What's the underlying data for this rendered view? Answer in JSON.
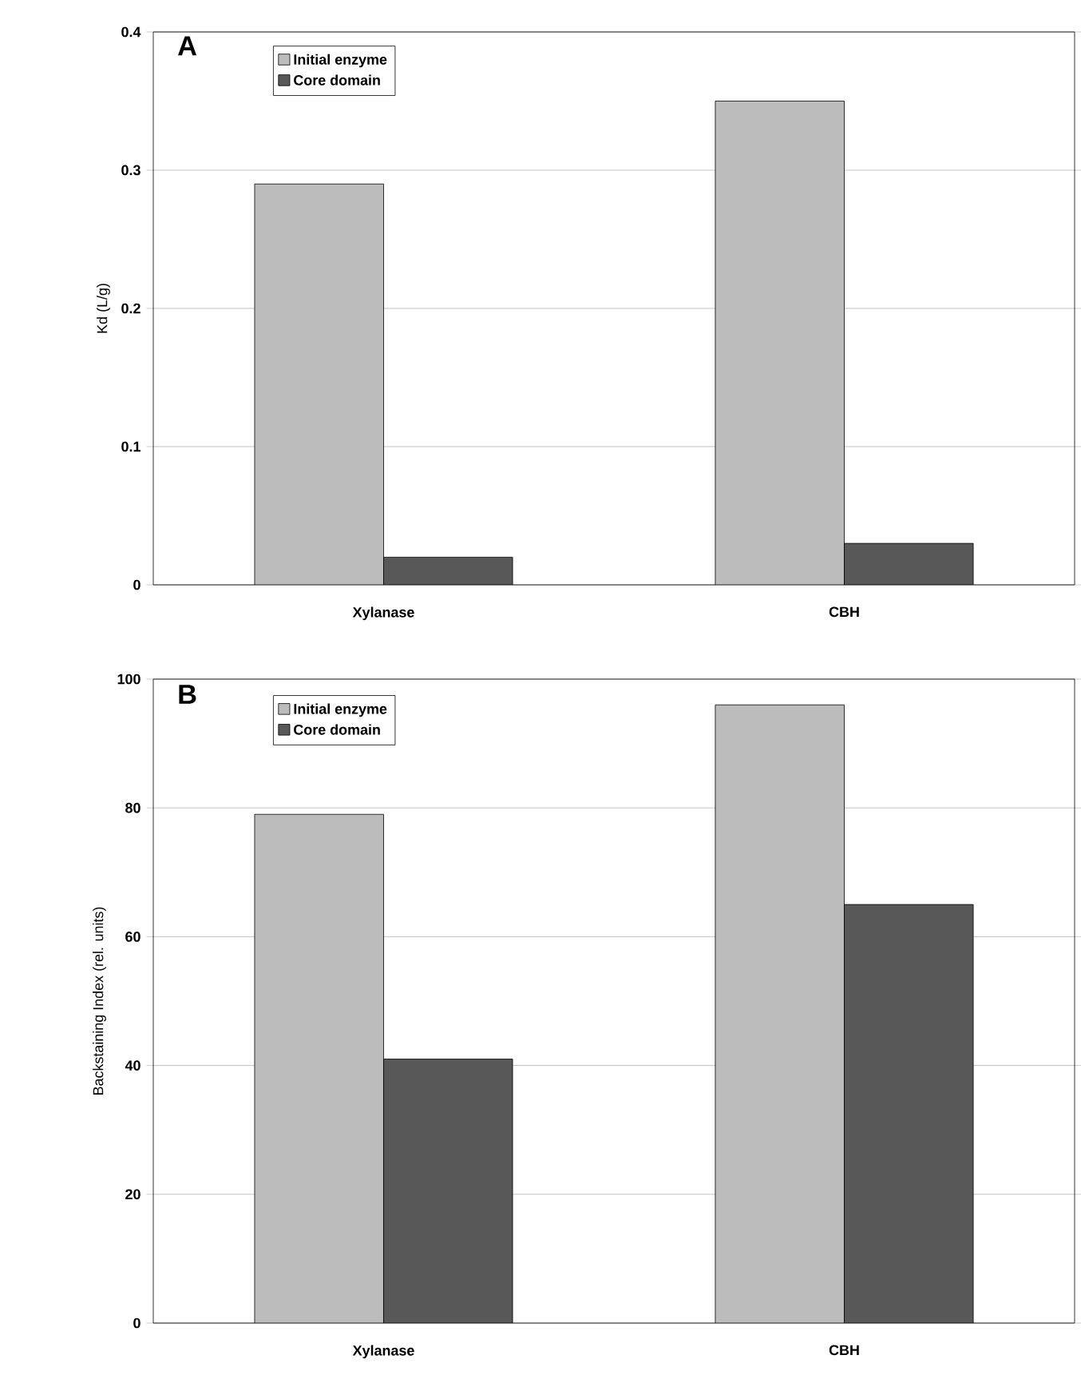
{
  "chart_data": [
    {
      "type": "bar",
      "title": "A",
      "ylabel": "Kd (L/g)",
      "categories": [
        "Xylanase",
        "CBH"
      ],
      "series": [
        {
          "name": "Initial enzyme",
          "color": "#bcbcbc",
          "values": [
            0.29,
            0.35
          ]
        },
        {
          "name": "Core domain",
          "color": "#585858",
          "values": [
            0.02,
            0.03
          ]
        }
      ],
      "ylim": [
        0,
        0.4
      ],
      "yticks": [
        0,
        0.1,
        0.2,
        0.3,
        0.4
      ],
      "grid": "y",
      "legend": "top left"
    },
    {
      "type": "bar",
      "title": "B",
      "ylabel": "Backstaining Index (rel. units)",
      "categories": [
        "Xylanase",
        "CBH"
      ],
      "series": [
        {
          "name": "Initial enzyme",
          "color": "#bcbcbc",
          "values": [
            79,
            96
          ]
        },
        {
          "name": "Core domain",
          "color": "#585858",
          "values": [
            41,
            65
          ]
        }
      ],
      "ylim": [
        0,
        100
      ],
      "yticks": [
        0,
        20,
        40,
        60,
        80,
        100
      ],
      "grid": "y",
      "legend": "top left"
    }
  ]
}
